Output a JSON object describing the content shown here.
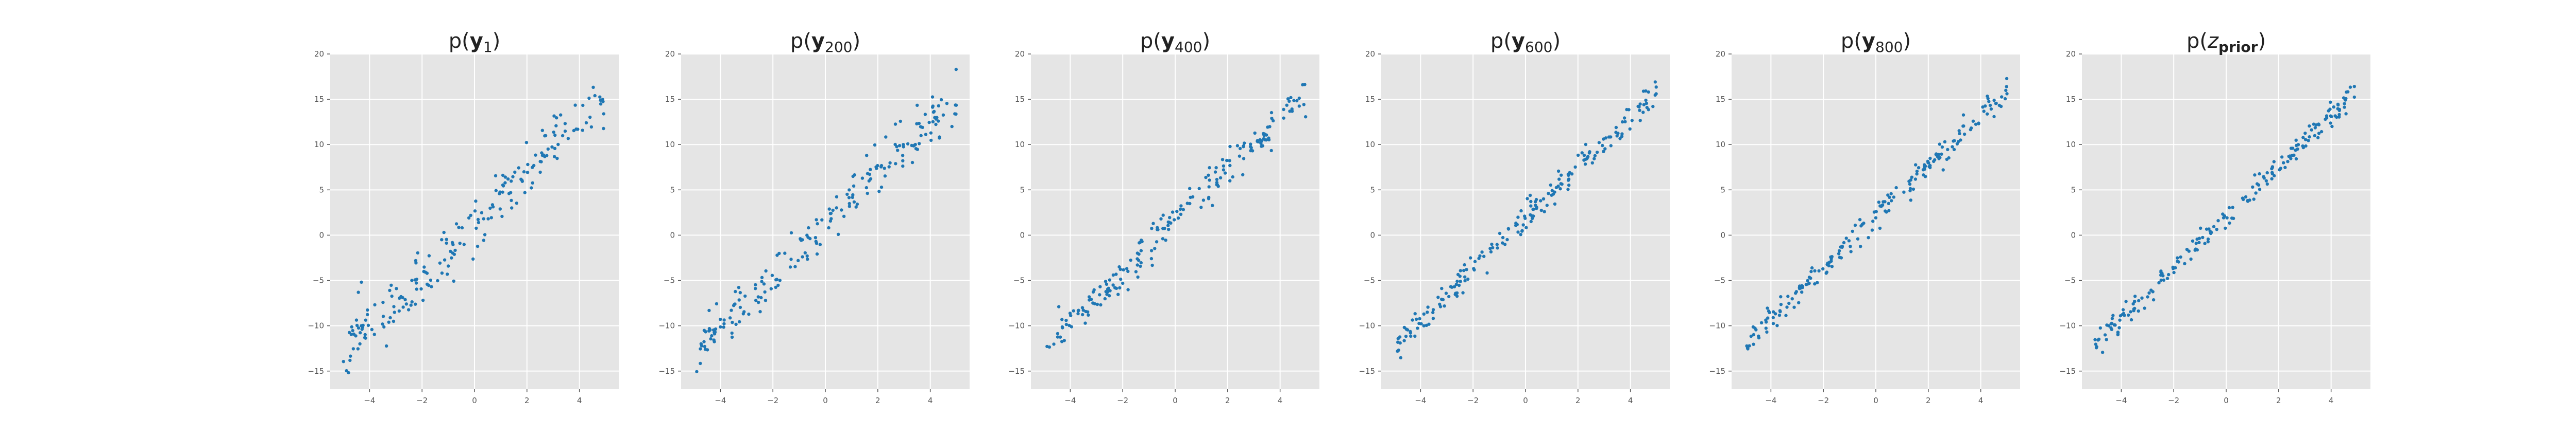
{
  "chart_data": [
    {
      "type": "scatter",
      "title": "p(y_1)",
      "title_parts": [
        {
          "t": "p(",
          "s": "normal"
        },
        {
          "t": "y",
          "s": "bold"
        },
        {
          "t": "1",
          "s": "sub"
        },
        {
          "t": ")",
          "s": "normal"
        }
      ],
      "xlim": [
        -5.5,
        5.5
      ],
      "ylim": [
        -17,
        20
      ],
      "xticks": [
        -4,
        -2,
        0,
        2,
        4
      ],
      "yticks": [
        -15,
        -10,
        -5,
        0,
        5,
        10,
        15,
        20
      ],
      "grid": true,
      "series": [
        {
          "color": "#1f77b4",
          "slope": 2.8,
          "intercept": 1.2,
          "noise": 1.6,
          "seed": 11,
          "n": 200
        }
      ]
    },
    {
      "type": "scatter",
      "title": "p(y_200)",
      "title_parts": [
        {
          "t": "p(",
          "s": "normal"
        },
        {
          "t": "y",
          "s": "bold"
        },
        {
          "t": "200",
          "s": "sub"
        },
        {
          "t": ")",
          "s": "normal"
        }
      ],
      "xlim": [
        -5.5,
        5.5
      ],
      "ylim": [
        -17,
        20
      ],
      "xticks": [
        -4,
        -2,
        0,
        2,
        4
      ],
      "yticks": [
        -15,
        -10,
        -5,
        0,
        5,
        10,
        15,
        20
      ],
      "grid": true,
      "series": [
        {
          "color": "#1f77b4",
          "slope": 2.8,
          "intercept": 1.4,
          "noise": 1.3,
          "seed": 23,
          "n": 200
        }
      ]
    },
    {
      "type": "scatter",
      "title": "p(y_400)",
      "title_parts": [
        {
          "t": "p(",
          "s": "normal"
        },
        {
          "t": "y",
          "s": "bold"
        },
        {
          "t": "400",
          "s": "sub"
        },
        {
          "t": ")",
          "s": "normal"
        }
      ],
      "xlim": [
        -5.5,
        5.5
      ],
      "ylim": [
        -17,
        20
      ],
      "xticks": [
        -4,
        -2,
        0,
        2,
        4
      ],
      "yticks": [
        -15,
        -10,
        -5,
        0,
        5,
        10,
        15,
        20
      ],
      "grid": true,
      "series": [
        {
          "color": "#1f77b4",
          "slope": 2.8,
          "intercept": 1.5,
          "noise": 1.0,
          "seed": 37,
          "n": 200
        }
      ]
    },
    {
      "type": "scatter",
      "title": "p(y_600)",
      "title_parts": [
        {
          "t": "p(",
          "s": "normal"
        },
        {
          "t": "y",
          "s": "bold"
        },
        {
          "t": "600",
          "s": "sub"
        },
        {
          "t": ")",
          "s": "normal"
        }
      ],
      "xlim": [
        -5.5,
        5.5
      ],
      "ylim": [
        -17,
        20
      ],
      "xticks": [
        -4,
        -2,
        0,
        2,
        4
      ],
      "yticks": [
        -15,
        -10,
        -5,
        0,
        5,
        10,
        15,
        20
      ],
      "grid": true,
      "series": [
        {
          "color": "#1f77b4",
          "slope": 2.8,
          "intercept": 1.8,
          "noise": 0.8,
          "seed": 41,
          "n": 200
        }
      ]
    },
    {
      "type": "scatter",
      "title": "p(y_800)",
      "title_parts": [
        {
          "t": "p(",
          "s": "normal"
        },
        {
          "t": "y",
          "s": "bold"
        },
        {
          "t": "800",
          "s": "sub"
        },
        {
          "t": ")",
          "s": "normal"
        }
      ],
      "xlim": [
        -5.5,
        5.5
      ],
      "ylim": [
        -17,
        20
      ],
      "xticks": [
        -4,
        -2,
        0,
        2,
        4
      ],
      "yticks": [
        -15,
        -10,
        -5,
        0,
        5,
        10,
        15,
        20
      ],
      "grid": true,
      "series": [
        {
          "color": "#1f77b4",
          "slope": 2.8,
          "intercept": 2.0,
          "noise": 0.7,
          "seed": 53,
          "n": 200
        }
      ]
    },
    {
      "type": "scatter",
      "title": "p(z_prior)",
      "title_parts": [
        {
          "t": "p(",
          "s": "normal"
        },
        {
          "t": "z",
          "s": "italic"
        },
        {
          "t": "prior",
          "s": "subbold"
        },
        {
          "t": ")",
          "s": "normal"
        }
      ],
      "xlim": [
        -5.5,
        5.5
      ],
      "ylim": [
        -17,
        20
      ],
      "xticks": [
        -4,
        -2,
        0,
        2,
        4
      ],
      "yticks": [
        -15,
        -10,
        -5,
        0,
        5,
        10,
        15,
        20
      ],
      "grid": true,
      "series": [
        {
          "color": "#1f77b4",
          "slope": 2.8,
          "intercept": 2.0,
          "noise": 0.6,
          "seed": 67,
          "n": 200
        }
      ]
    }
  ]
}
